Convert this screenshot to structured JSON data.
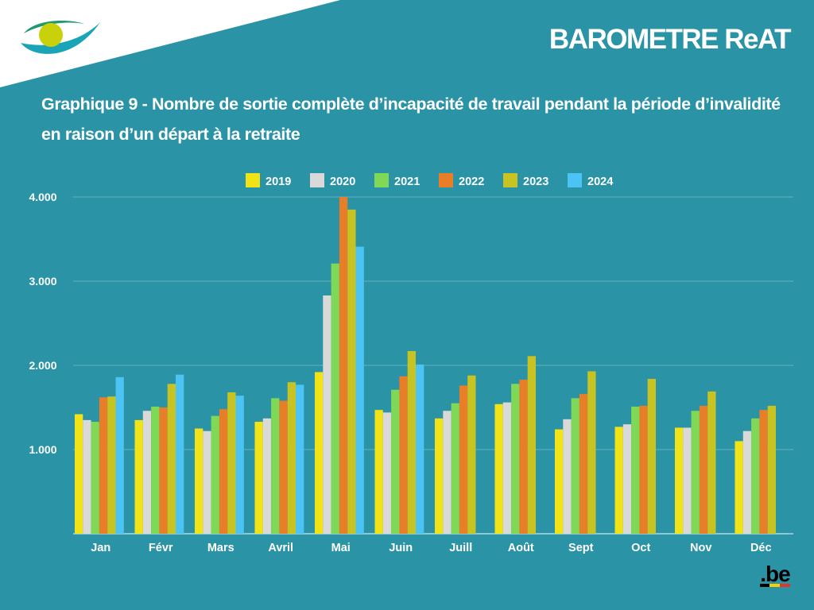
{
  "header": {
    "brand": "BAROMETRE ReAT",
    "title": "Graphique 9 - Nombre de sortie complète d’incapacité de travail pendant la période d’invalidité en raison d’un départ à la retraite"
  },
  "footer": {
    "logo_text": ".be"
  },
  "colors": {
    "background": "#2a93a6",
    "series": [
      "#f2e317",
      "#d9d9d9",
      "#7fd856",
      "#e87e27",
      "#c7c322",
      "#4bc3f5"
    ]
  },
  "chart_data": {
    "type": "bar",
    "title": "Graphique 9 - Nombre de sortie complète d’incapacité de travail pendant la période d’invalidité en raison d’un départ à la retraite",
    "xlabel": "",
    "ylabel": "",
    "ylim": [
      0,
      4000
    ],
    "yticks": [
      1000,
      2000,
      3000,
      4000
    ],
    "ytick_labels": [
      "1.000",
      "2.000",
      "3.000",
      "4.000"
    ],
    "grid": true,
    "legend_position": "top-center",
    "categories": [
      "Jan",
      "Févr",
      "Mars",
      "Avril",
      "Mai",
      "Juin",
      "Juill",
      "Août",
      "Sept",
      "Oct",
      "Nov",
      "Déc"
    ],
    "series": [
      {
        "name": "2019",
        "values": [
          1420,
          1350,
          1250,
          1330,
          1920,
          1470,
          1370,
          1540,
          1240,
          1270,
          1260,
          1100
        ]
      },
      {
        "name": "2020",
        "values": [
          1350,
          1460,
          1220,
          1370,
          2830,
          1440,
          1460,
          1560,
          1360,
          1300,
          1260,
          1220
        ]
      },
      {
        "name": "2021",
        "values": [
          1330,
          1510,
          1400,
          1610,
          3210,
          1710,
          1550,
          1780,
          1610,
          1510,
          1460,
          1370
        ]
      },
      {
        "name": "2022",
        "values": [
          1620,
          1500,
          1480,
          1580,
          4000,
          1870,
          1760,
          1830,
          1660,
          1520,
          1520,
          1470
        ]
      },
      {
        "name": "2023",
        "values": [
          1630,
          1780,
          1680,
          1800,
          3850,
          2170,
          1880,
          2110,
          1930,
          1840,
          1690,
          1520
        ]
      },
      {
        "name": "2024",
        "values": [
          1860,
          1890,
          1640,
          1770,
          3410,
          2010,
          null,
          null,
          null,
          null,
          null,
          null
        ]
      }
    ]
  }
}
